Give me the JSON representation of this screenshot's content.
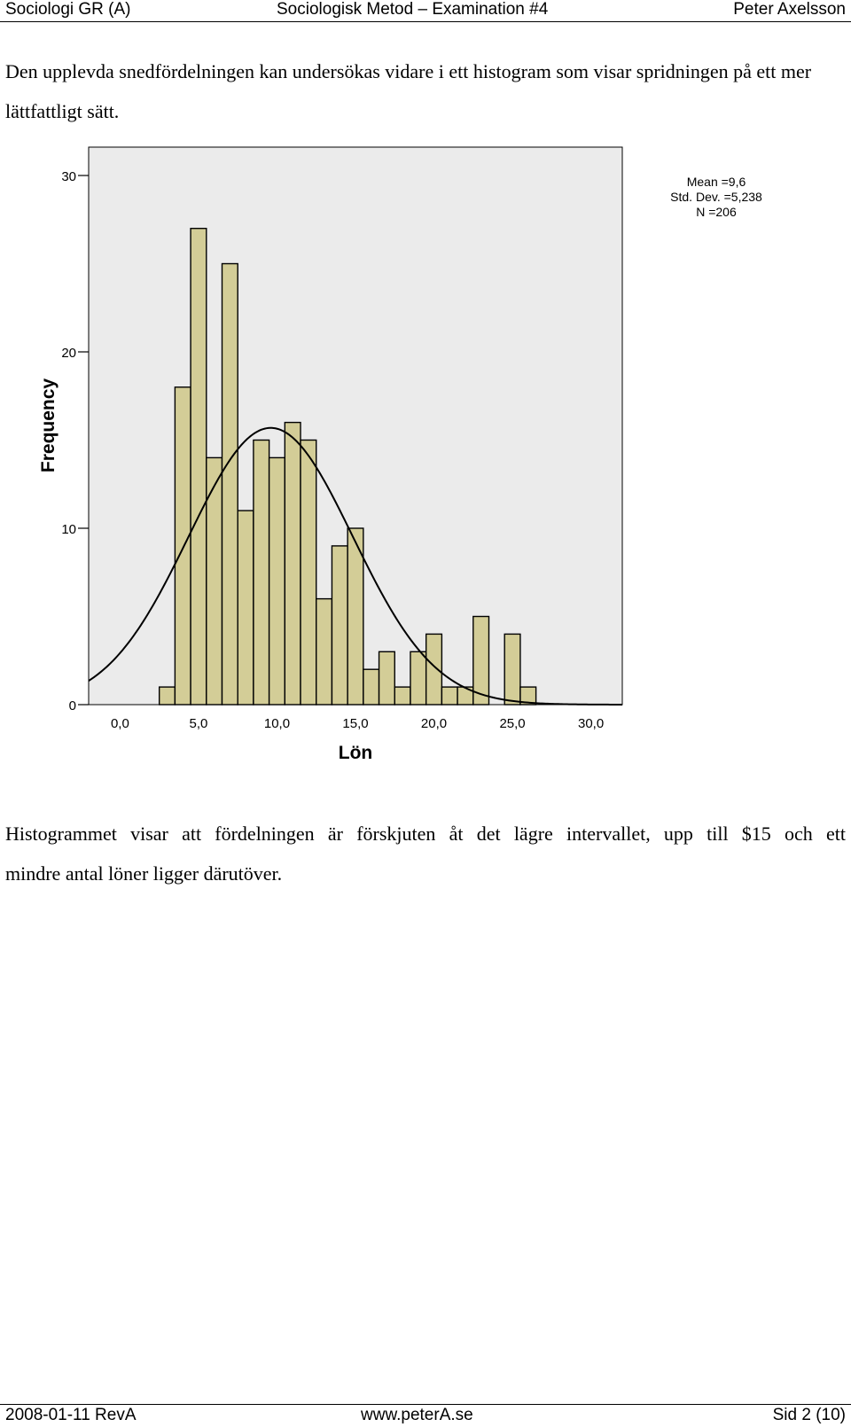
{
  "header": {
    "left": "Sociologi GR (A)",
    "center": "Sociologisk Metod – Examination #4",
    "right": "Peter Axelsson"
  },
  "intro_text": "Den upplevda snedfördelningen kan undersökas vidare i ett histogram som visar spridningen på ett mer lättfattligt sätt.",
  "conclusion_line1": "Histogrammet visar att fördelningen är förskjuten åt det lägre intervallet, upp till $15 och ett",
  "conclusion_line2": "mindre antal löner ligger därutöver.",
  "footer": {
    "left": "2008-01-11 RevA",
    "center": "www.peterA.se",
    "right": "Sid 2 (10)"
  },
  "chart_data": {
    "type": "bar",
    "subtype": "histogram",
    "xlabel": "Lön",
    "ylabel": "Frequency",
    "xlim": [
      -2.0,
      32.0
    ],
    "ylim": [
      0,
      30
    ],
    "bin_width": 1.0,
    "x_ticks": [
      {
        "value": 0,
        "label": "0,0"
      },
      {
        "value": 5,
        "label": "5,0"
      },
      {
        "value": 10,
        "label": "10,0"
      },
      {
        "value": 15,
        "label": "15,0"
      },
      {
        "value": 20,
        "label": "20,0"
      },
      {
        "value": 25,
        "label": "25,0"
      },
      {
        "value": 30,
        "label": "30,0"
      }
    ],
    "y_ticks": [
      {
        "value": 0,
        "label": "0"
      },
      {
        "value": 10,
        "label": "10"
      },
      {
        "value": 20,
        "label": "20"
      },
      {
        "value": 30,
        "label": "30"
      }
    ],
    "bins": [
      {
        "start": 2.5,
        "end": 3.5,
        "count": 1
      },
      {
        "start": 3.5,
        "end": 4.5,
        "count": 18
      },
      {
        "start": 4.5,
        "end": 5.5,
        "count": 27
      },
      {
        "start": 5.5,
        "end": 6.5,
        "count": 14
      },
      {
        "start": 6.5,
        "end": 7.5,
        "count": 25
      },
      {
        "start": 7.5,
        "end": 8.5,
        "count": 11
      },
      {
        "start": 8.5,
        "end": 9.5,
        "count": 15
      },
      {
        "start": 9.5,
        "end": 10.5,
        "count": 14
      },
      {
        "start": 10.5,
        "end": 11.5,
        "count": 16
      },
      {
        "start": 11.5,
        "end": 12.5,
        "count": 15
      },
      {
        "start": 12.5,
        "end": 13.5,
        "count": 6
      },
      {
        "start": 13.5,
        "end": 14.5,
        "count": 9
      },
      {
        "start": 14.5,
        "end": 15.5,
        "count": 10
      },
      {
        "start": 15.5,
        "end": 16.5,
        "count": 2
      },
      {
        "start": 16.5,
        "end": 17.5,
        "count": 3
      },
      {
        "start": 17.5,
        "end": 18.5,
        "count": 1
      },
      {
        "start": 18.5,
        "end": 19.5,
        "count": 3
      },
      {
        "start": 19.5,
        "end": 20.5,
        "count": 4
      },
      {
        "start": 20.5,
        "end": 21.5,
        "count": 1
      },
      {
        "start": 21.5,
        "end": 22.5,
        "count": 1
      },
      {
        "start": 22.5,
        "end": 23.5,
        "count": 5
      },
      {
        "start": 23.5,
        "end": 24.5,
        "count": 0
      },
      {
        "start": 24.5,
        "end": 25.5,
        "count": 4
      },
      {
        "start": 25.5,
        "end": 26.5,
        "count": 1
      }
    ],
    "normal_curve": {
      "mean": 9.6,
      "std": 5.238,
      "n": 206
    },
    "stats_lines": [
      "Mean =9,6",
      "Std. Dev. =5,238",
      "N =206"
    ],
    "grid": false,
    "colors": {
      "bar_fill": "#d3cd97",
      "plot_background": "#ebebeb",
      "stroke": "#000000"
    }
  }
}
